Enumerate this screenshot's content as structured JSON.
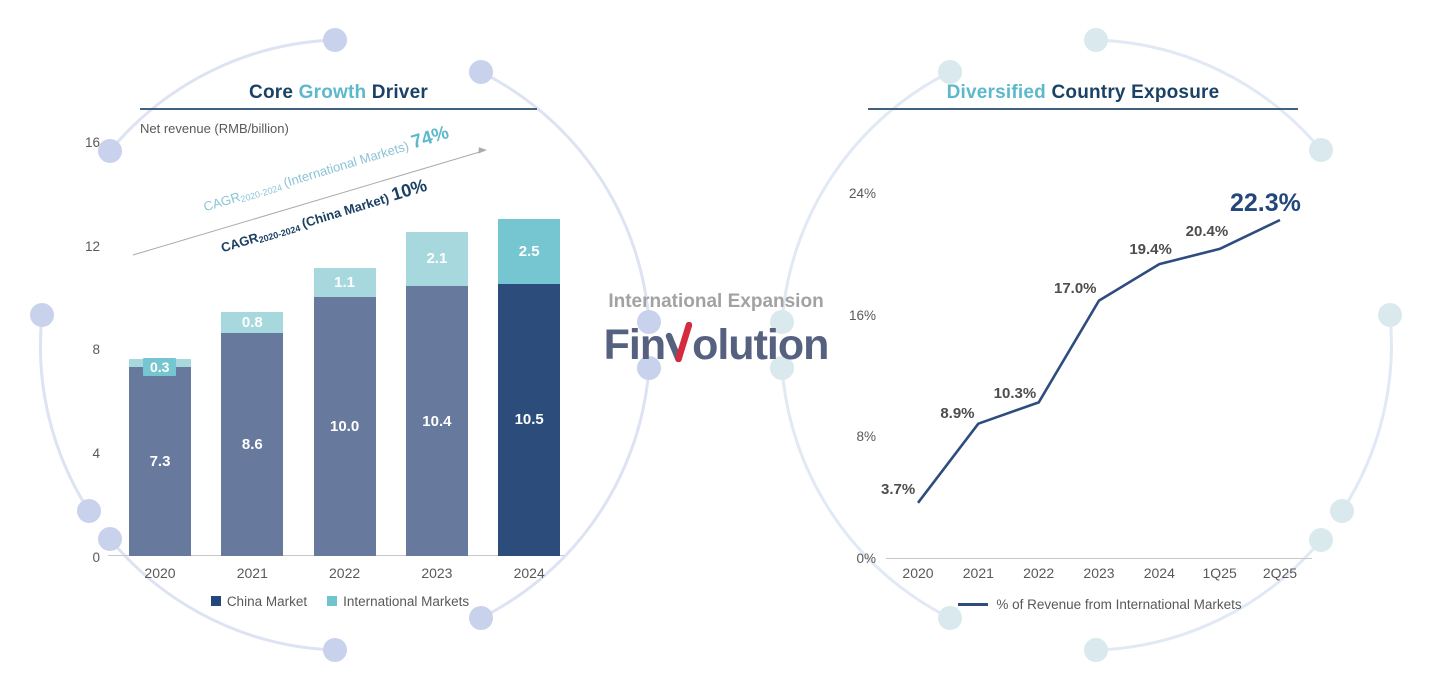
{
  "colors": {
    "title_navy": "#1b4265",
    "title_teal": "#5cb9cb",
    "bar_slate": "#68799e",
    "bar_navy": "#2c4d7c",
    "bar_light_teal": "#a7d8de",
    "bar_mid_teal": "#76c6d1",
    "trend_line": "#2e4d7e",
    "data_label_gray": "#4d4d4d",
    "data_label_navy": "#24477b",
    "tick_gray": "#595959",
    "heading_gray": "#a2a2a2",
    "logo_slate": "#566180",
    "logo_red": "#d52b3f",
    "cagr_teal": "#8bc4d5",
    "cagr_teal_value": "#5db8cd",
    "cagr_navy": "#1c4063",
    "underline": "#41617f",
    "deco_lavender": "#c9d2ec",
    "deco_pale_teal": "#d9e9ed"
  },
  "left_chart": {
    "title": {
      "part1": "Core ",
      "part2": "Growth",
      "part3": " Driver"
    },
    "unit_label": "Net revenue (RMB/billion)",
    "cagr_international": {
      "prefix": "CAGR",
      "subscript": "2020-2024",
      "label": "(International Markets)",
      "value": "74%"
    },
    "cagr_china": {
      "prefix": "CAGR",
      "subscript": "2020-2024",
      "label": "(China Market)",
      "value": "10%"
    },
    "legend": [
      "China Market",
      "International Markets"
    ]
  },
  "center": {
    "heading": "International Expansion",
    "logo": {
      "part1": "Fin",
      "part2": "olution"
    }
  },
  "right_chart": {
    "title": {
      "part1": "Diversified ",
      "part2": "Country Exposure"
    },
    "legend": "% of Revenue from International Markets"
  },
  "chart_data": [
    {
      "type": "bar",
      "stacked": true,
      "title": "Core Growth Driver",
      "ylabel": "Net revenue (RMB/billion)",
      "categories": [
        "2020",
        "2021",
        "2022",
        "2023",
        "2024"
      ],
      "series": [
        {
          "name": "China Market",
          "values": [
            7.3,
            8.6,
            10.0,
            10.4,
            10.5
          ],
          "value_labels": [
            "7.3",
            "8.6",
            "10.0",
            "10.4",
            "10.5"
          ]
        },
        {
          "name": "International Markets",
          "values": [
            0.3,
            0.8,
            1.1,
            2.1,
            2.5
          ],
          "value_labels": [
            "0.3",
            "0.8",
            "1.1",
            "2.1",
            "2.5"
          ]
        }
      ],
      "ylim": [
        0,
        16
      ],
      "yticks": [
        0,
        4,
        8,
        12,
        16
      ],
      "grid": false,
      "legend_position": "bottom",
      "annotations": [
        "CAGR 2020-2024 (International Markets) 74%",
        "CAGR 2020-2024 (China Market) 10%"
      ]
    },
    {
      "type": "line",
      "title": "Diversified Country Exposure",
      "categories": [
        "2020",
        "2021",
        "2022",
        "2023",
        "2024",
        "1Q25",
        "2Q25"
      ],
      "series": [
        {
          "name": "% of Revenue from International Markets",
          "values": [
            3.7,
            8.9,
            10.3,
            17.0,
            19.4,
            20.4,
            22.3
          ],
          "point_labels": [
            "3.7%",
            "8.9%",
            "10.3%",
            "17.0%",
            "19.4%",
            "20.4%",
            "22.3%"
          ]
        }
      ],
      "ylim": [
        0,
        24
      ],
      "yticks": [
        {
          "v": 0,
          "label": "0%"
        },
        {
          "v": 8,
          "label": "8%"
        },
        {
          "v": 16,
          "label": "16%"
        },
        {
          "v": 24,
          "label": "24%"
        }
      ],
      "grid": false,
      "legend_position": "bottom"
    }
  ]
}
